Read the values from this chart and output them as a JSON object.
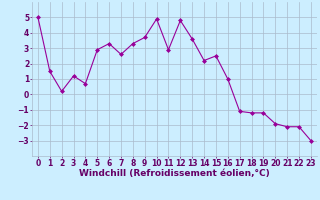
{
  "x": [
    0,
    1,
    2,
    3,
    4,
    5,
    6,
    7,
    8,
    9,
    10,
    11,
    12,
    13,
    14,
    15,
    16,
    17,
    18,
    19,
    20,
    21,
    22,
    23
  ],
  "y": [
    5.0,
    1.5,
    0.2,
    1.2,
    0.7,
    2.9,
    3.3,
    2.6,
    3.3,
    3.7,
    4.9,
    2.9,
    4.8,
    3.6,
    2.2,
    2.5,
    1.0,
    -1.1,
    -1.2,
    -1.2,
    -1.9,
    -2.1,
    -2.1,
    -3.0
  ],
  "line_color": "#990099",
  "marker": "D",
  "marker_size": 2,
  "bg_color": "#cceeff",
  "grid_color": "#aabbcc",
  "xlabel": "Windchill (Refroidissement éolien,°C)",
  "xlabel_color": "#660066",
  "xlabel_fontsize": 6.5,
  "tick_color": "#660066",
  "tick_fontsize": 5.5,
  "ylim": [
    -4,
    6
  ],
  "xlim": [
    -0.5,
    23.5
  ],
  "yticks": [
    -3,
    -2,
    -1,
    0,
    1,
    2,
    3,
    4,
    5
  ],
  "xticks": [
    0,
    1,
    2,
    3,
    4,
    5,
    6,
    7,
    8,
    9,
    10,
    11,
    12,
    13,
    14,
    15,
    16,
    17,
    18,
    19,
    20,
    21,
    22,
    23
  ]
}
